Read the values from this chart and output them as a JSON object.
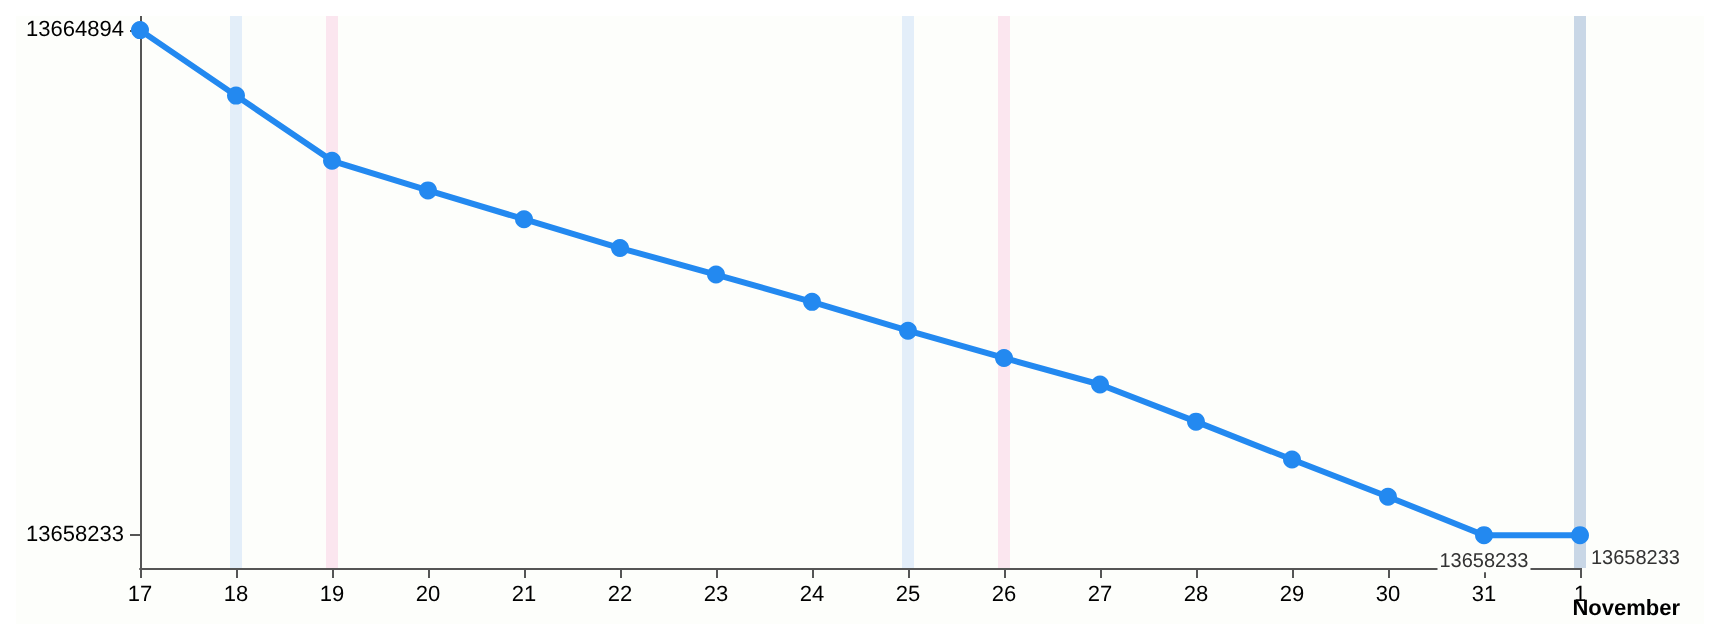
{
  "chart_data": {
    "type": "line",
    "categories": [
      "17",
      "18",
      "19",
      "20",
      "21",
      "22",
      "23",
      "24",
      "25",
      "26",
      "27",
      "28",
      "29",
      "30",
      "31",
      "1"
    ],
    "series": [
      {
        "color": "#2389f0",
        "values": [
          13664894,
          13664030,
          13663170,
          13662780,
          13662400,
          13662020,
          13661670,
          13661310,
          13660930,
          13660570,
          13660220,
          13659730,
          13659230,
          13658740,
          13658233,
          13658233
        ],
        "value_labels": [
          null,
          null,
          null,
          null,
          null,
          null,
          null,
          null,
          null,
          null,
          null,
          null,
          null,
          null,
          "13658233",
          "13658233"
        ]
      }
    ],
    "ylim": [
      13657800,
      13665080
    ],
    "yticks": [
      13658233,
      13664894
    ],
    "ref_lines": [
      {
        "axis": "x",
        "value": "18",
        "color": "#e3eef9"
      },
      {
        "axis": "x",
        "value": "19",
        "color": "#fbe6ef"
      },
      {
        "axis": "x",
        "value": "25",
        "color": "#e3eef9"
      },
      {
        "axis": "x",
        "value": "26",
        "color": "#fbe6ef"
      },
      {
        "axis": "x",
        "value": "1",
        "color": "#c9d7e6"
      }
    ],
    "annotations": [
      "November"
    ],
    "grid": false,
    "marker": "circle",
    "line_style": "solid"
  }
}
